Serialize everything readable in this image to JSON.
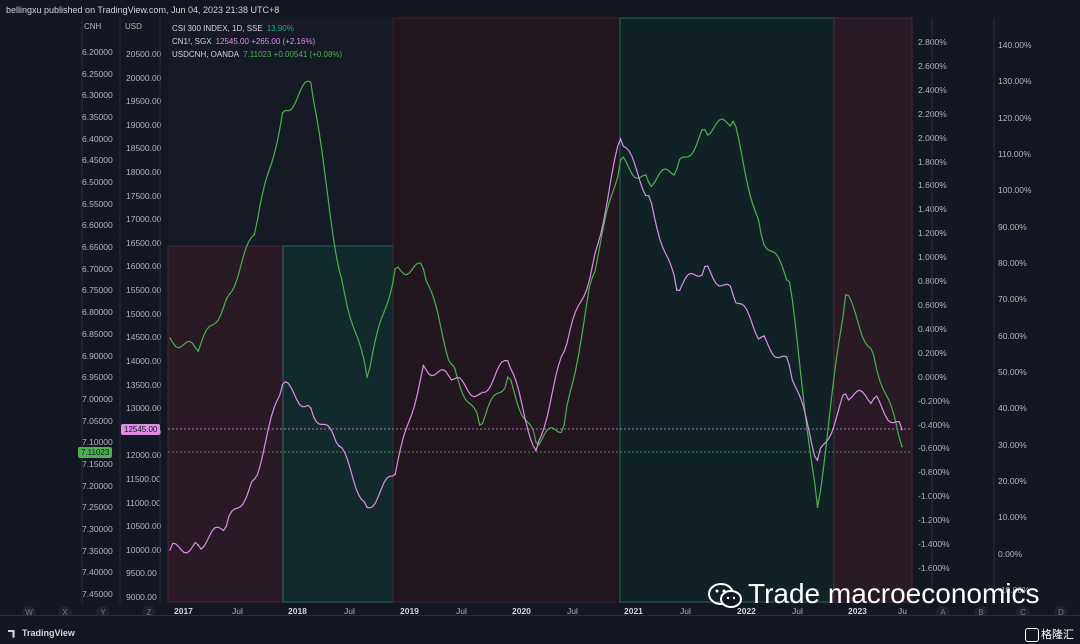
{
  "header": {
    "published": "bellingxu published on TradingView.com, Jun 04, 2023 21:38 UTC+8"
  },
  "axes": {
    "cnh_title": "CNH",
    "usd_title": "USD",
    "cnh_ticks": [
      "6.20000",
      "6.25000",
      "6.30000",
      "6.35000",
      "6.40000",
      "6.45000",
      "6.50000",
      "6.55000",
      "6.60000",
      "6.65000",
      "6.70000",
      "6.75000",
      "6.80000",
      "6.85000",
      "6.90000",
      "6.95000",
      "7.00000",
      "7.05000",
      "7.10000",
      "7.15000",
      "7.20000",
      "7.25000",
      "7.30000",
      "7.35000",
      "7.40000",
      "7.45000"
    ],
    "usd_ticks": [
      "20500.00",
      "20000.00",
      "19500.00",
      "19000.00",
      "18500.00",
      "18000.00",
      "17500.00",
      "17000.00",
      "16500.00",
      "16000.00",
      "15500.00",
      "15000.00",
      "14500.00",
      "14000.00",
      "13500.00",
      "13000.00",
      "12500.00",
      "12000.00",
      "11500.00",
      "11000.00",
      "10500.00",
      "10000.00",
      "9500.00",
      "9000.00"
    ],
    "pct_ticks": [
      "2.800%",
      "2.600%",
      "2.400%",
      "2.200%",
      "2.000%",
      "1.800%",
      "1.600%",
      "1.400%",
      "1.200%",
      "1.000%",
      "0.800%",
      "0.600%",
      "0.400%",
      "0.200%",
      "0.000%",
      "-0.200%",
      "-0.400%",
      "-0.600%",
      "-0.800%",
      "-1.000%",
      "-1.200%",
      "-1.400%",
      "-1.600%"
    ],
    "pct2_ticks": [
      "140.00%",
      "130.00%",
      "120.00%",
      "110.00%",
      "100.00%",
      "90.00%",
      "80.00%",
      "70.00%",
      "60.00%",
      "50.00%",
      "40.00%",
      "30.00%",
      "20.00%",
      "10.00%",
      "0.00%",
      "-10.00%"
    ],
    "x_ticks": [
      "2017",
      "Jul",
      "2018",
      "Jul",
      "2019",
      "Jul",
      "2020",
      "Jul",
      "2021",
      "Jul",
      "2022",
      "Jul",
      "2023",
      "Ju"
    ]
  },
  "legend": [
    {
      "name": "CSI 300 INDEX, 1D, SSE",
      "value": "13.90%",
      "color": "#26a69a"
    },
    {
      "name": "CN1!, SGX",
      "value": "12545.00  +265.00 (+2.16%)",
      "color": "#da8fe3"
    },
    {
      "name": "USDCNH, OANDA",
      "value": "7.11023  +0.00541 (+0.08%)",
      "color": "#4caf50"
    }
  ],
  "price_tags": {
    "cn1": "12545.00",
    "usdcnh": "7.11023"
  },
  "bottom_letters": [
    "W",
    "X",
    "Y",
    "Z",
    "A",
    "B",
    "C",
    "D"
  ],
  "brand": "TradingView",
  "watermark": "Trade macroeconomics",
  "corner_logo": "格隆汇",
  "colors": {
    "usdcnh": "#4caf50",
    "cn1": "#da8fe3",
    "csi": "#26a69a",
    "red_zone": "#3a1a2a",
    "teal_zone": "#12302e"
  },
  "chart_data": {
    "type": "line",
    "x": [
      "2017-01",
      "2017-04",
      "2017-07",
      "2017-10",
      "2018-01",
      "2018-04",
      "2018-07",
      "2018-10",
      "2019-01",
      "2019-04",
      "2019-07",
      "2019-10",
      "2020-01",
      "2020-04",
      "2020-07",
      "2020-10",
      "2021-01",
      "2021-04",
      "2021-07",
      "2021-10",
      "2022-01",
      "2022-04",
      "2022-07",
      "2022-10",
      "2023-01",
      "2023-04",
      "2023-06"
    ],
    "series": [
      {
        "name": "USDCNH, OANDA",
        "values": [
          6.86,
          6.89,
          6.77,
          6.62,
          6.34,
          6.27,
          6.7,
          6.95,
          6.7,
          6.7,
          6.92,
          7.06,
          6.95,
          7.1,
          7.06,
          6.72,
          6.45,
          6.5,
          6.47,
          6.38,
          6.36,
          6.62,
          6.73,
          7.25,
          6.76,
          6.9,
          7.11
        ]
      },
      {
        "name": "CN1!, SGX",
        "values": [
          10000,
          10100,
          10500,
          11500,
          13500,
          13000,
          12200,
          10900,
          11600,
          13900,
          13600,
          13300,
          14000,
          12100,
          14200,
          16000,
          18700,
          17500,
          15500,
          16000,
          15400,
          14500,
          13900,
          11900,
          13300,
          13200,
          12545
        ]
      }
    ]
  }
}
